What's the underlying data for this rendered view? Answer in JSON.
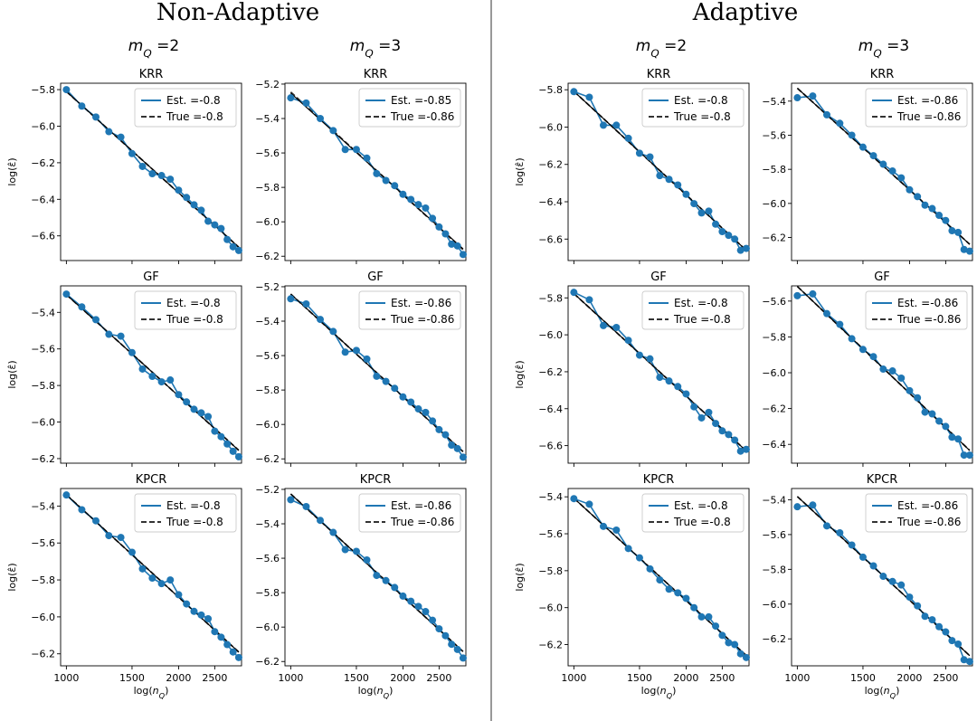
{
  "sections": [
    {
      "title": "Non-Adaptive",
      "columns": [
        "m_Q =2",
        "m_Q =3"
      ]
    },
    {
      "title": "Adaptive",
      "columns": [
        "m_Q =2",
        "m_Q =3"
      ]
    }
  ],
  "x_label": "log(n_Q)",
  "y_label": "log(ε̂)",
  "x_ticks": [
    1000,
    1500,
    2000,
    2500
  ],
  "colors": {
    "series": "#1f77b4",
    "reference": "#333333",
    "divider": "#555555",
    "fit": "#000000"
  },
  "chart_data": [
    {
      "id": "na-m2-krr",
      "type": "line",
      "section": 0,
      "col": 0,
      "row": 0,
      "title": "KRR",
      "xscale": "log",
      "xlim": [
        965,
        2950
      ],
      "ylim": [
        -6.735,
        -5.765
      ],
      "yticks": [
        -5.8,
        -6.0,
        -6.2,
        -6.4,
        -6.6
      ],
      "show_xticks": false,
      "show_ylabel": true,
      "x": [
        1000,
        1100,
        1200,
        1300,
        1400,
        1500,
        1600,
        1700,
        1800,
        1900,
        2000,
        2100,
        2200,
        2300,
        2400,
        2500,
        2600,
        2700,
        2800,
        2900
      ],
      "series": [
        {
          "name": "Est. =-0.8",
          "values": [
            -5.8,
            -5.89,
            -5.95,
            -6.03,
            -6.06,
            -6.15,
            -6.22,
            -6.26,
            -6.27,
            -6.29,
            -6.35,
            -6.39,
            -6.43,
            -6.46,
            -6.52,
            -6.54,
            -6.56,
            -6.62,
            -6.66,
            -6.68
          ],
          "slope": -0.8
        },
        {
          "name": "True =-0.8",
          "slope": -0.8
        }
      ]
    },
    {
      "id": "na-m3-krr",
      "type": "line",
      "section": 0,
      "col": 1,
      "row": 0,
      "title": "KRR",
      "xscale": "log",
      "xlim": [
        965,
        2950
      ],
      "ylim": [
        -6.225,
        -5.195
      ],
      "yticks": [
        -5.2,
        -5.4,
        -5.6,
        -5.8,
        -6.0,
        -6.2
      ],
      "show_xticks": false,
      "show_ylabel": false,
      "x": [
        1000,
        1100,
        1200,
        1300,
        1400,
        1500,
        1600,
        1700,
        1800,
        1900,
        2000,
        2100,
        2200,
        2300,
        2400,
        2500,
        2600,
        2700,
        2800,
        2900
      ],
      "series": [
        {
          "name": "Est. =-0.85",
          "values": [
            -5.28,
            -5.31,
            -5.4,
            -5.47,
            -5.58,
            -5.58,
            -5.63,
            -5.72,
            -5.76,
            -5.79,
            -5.84,
            -5.87,
            -5.9,
            -5.92,
            -5.98,
            -6.03,
            -6.07,
            -6.13,
            -6.14,
            -6.19
          ],
          "slope": -0.85
        },
        {
          "name": "True =-0.86",
          "slope": -0.86
        }
      ]
    },
    {
      "id": "a-m2-krr",
      "type": "line",
      "section": 1,
      "col": 0,
      "row": 0,
      "title": "KRR",
      "xscale": "log",
      "xlim": [
        965,
        2950
      ],
      "ylim": [
        -6.715,
        -5.765
      ],
      "yticks": [
        -5.8,
        -6.0,
        -6.2,
        -6.4,
        -6.6
      ],
      "show_xticks": false,
      "show_ylabel": true,
      "x": [
        1000,
        1100,
        1200,
        1300,
        1400,
        1500,
        1600,
        1700,
        1800,
        1900,
        2000,
        2100,
        2200,
        2300,
        2400,
        2500,
        2600,
        2700,
        2800,
        2900
      ],
      "series": [
        {
          "name": "Est. =-0.8",
          "values": [
            -5.81,
            -5.84,
            -5.99,
            -5.99,
            -6.06,
            -6.14,
            -6.16,
            -6.26,
            -6.28,
            -6.31,
            -6.36,
            -6.41,
            -6.46,
            -6.45,
            -6.52,
            -6.56,
            -6.58,
            -6.6,
            -6.66,
            -6.65
          ],
          "slope": -0.8
        },
        {
          "name": "True =-0.8",
          "slope": -0.8
        }
      ]
    },
    {
      "id": "a-m3-krr",
      "type": "line",
      "section": 1,
      "col": 1,
      "row": 0,
      "title": "KRR",
      "xscale": "log",
      "xlim": [
        965,
        2950
      ],
      "ylim": [
        -6.335,
        -5.295
      ],
      "yticks": [
        -5.4,
        -5.6,
        -5.8,
        -6.0,
        -6.2
      ],
      "show_xticks": false,
      "show_ylabel": false,
      "x": [
        1000,
        1100,
        1200,
        1300,
        1400,
        1500,
        1600,
        1700,
        1800,
        1900,
        2000,
        2100,
        2200,
        2300,
        2400,
        2500,
        2600,
        2700,
        2800,
        2900
      ],
      "series": [
        {
          "name": "Est. =-0.86",
          "values": [
            -5.38,
            -5.37,
            -5.48,
            -5.53,
            -5.6,
            -5.67,
            -5.72,
            -5.77,
            -5.81,
            -5.85,
            -5.92,
            -5.96,
            -6.01,
            -6.03,
            -6.07,
            -6.1,
            -6.16,
            -6.17,
            -6.27,
            -6.28
          ],
          "slope": -0.86
        },
        {
          "name": "True =-0.86",
          "slope": -0.86
        }
      ]
    },
    {
      "id": "na-m2-gf",
      "type": "line",
      "section": 0,
      "col": 0,
      "row": 1,
      "title": "GF",
      "xscale": "log",
      "xlim": [
        965,
        2950
      ],
      "ylim": [
        -6.225,
        -5.255
      ],
      "yticks": [
        -5.4,
        -5.6,
        -5.8,
        -6.0,
        -6.2
      ],
      "show_xticks": false,
      "show_ylabel": true,
      "x": [
        1000,
        1100,
        1200,
        1300,
        1400,
        1500,
        1600,
        1700,
        1800,
        1900,
        2000,
        2100,
        2200,
        2300,
        2400,
        2500,
        2600,
        2700,
        2800,
        2900
      ],
      "series": [
        {
          "name": "Est. =-0.8",
          "values": [
            -5.3,
            -5.37,
            -5.44,
            -5.52,
            -5.53,
            -5.62,
            -5.71,
            -5.75,
            -5.78,
            -5.77,
            -5.85,
            -5.89,
            -5.93,
            -5.95,
            -5.97,
            -6.05,
            -6.08,
            -6.12,
            -6.16,
            -6.19
          ],
          "slope": -0.8
        },
        {
          "name": "True =-0.8",
          "slope": -0.8
        }
      ]
    },
    {
      "id": "na-m3-gf",
      "type": "line",
      "section": 0,
      "col": 1,
      "row": 1,
      "title": "GF",
      "xscale": "log",
      "xlim": [
        965,
        2950
      ],
      "ylim": [
        -6.225,
        -5.195
      ],
      "yticks": [
        -5.2,
        -5.4,
        -5.6,
        -5.8,
        -6.0,
        -6.2
      ],
      "show_xticks": false,
      "show_ylabel": false,
      "x": [
        1000,
        1100,
        1200,
        1300,
        1400,
        1500,
        1600,
        1700,
        1800,
        1900,
        2000,
        2100,
        2200,
        2300,
        2400,
        2500,
        2600,
        2700,
        2800,
        2900
      ],
      "series": [
        {
          "name": "Est. =-0.86",
          "values": [
            -5.27,
            -5.3,
            -5.39,
            -5.46,
            -5.58,
            -5.57,
            -5.62,
            -5.72,
            -5.75,
            -5.79,
            -5.84,
            -5.87,
            -5.91,
            -5.93,
            -5.98,
            -6.03,
            -6.06,
            -6.12,
            -6.14,
            -6.19
          ],
          "slope": -0.86
        },
        {
          "name": "True =-0.86",
          "slope": -0.86
        }
      ]
    },
    {
      "id": "a-m2-gf",
      "type": "line",
      "section": 1,
      "col": 0,
      "row": 1,
      "title": "GF",
      "xscale": "log",
      "xlim": [
        965,
        2950
      ],
      "ylim": [
        -6.695,
        -5.735
      ],
      "yticks": [
        -5.8,
        -6.0,
        -6.2,
        -6.4,
        -6.6
      ],
      "show_xticks": false,
      "show_ylabel": true,
      "x": [
        1000,
        1100,
        1200,
        1300,
        1400,
        1500,
        1600,
        1700,
        1800,
        1900,
        2000,
        2100,
        2200,
        2300,
        2400,
        2500,
        2600,
        2700,
        2800,
        2900
      ],
      "series": [
        {
          "name": "Est. =-0.8",
          "values": [
            -5.77,
            -5.81,
            -5.95,
            -5.96,
            -6.03,
            -6.11,
            -6.13,
            -6.23,
            -6.25,
            -6.28,
            -6.32,
            -6.39,
            -6.45,
            -6.42,
            -6.48,
            -6.52,
            -6.54,
            -6.57,
            -6.63,
            -6.62
          ],
          "slope": -0.8
        },
        {
          "name": "True =-0.8",
          "slope": -0.8
        }
      ]
    },
    {
      "id": "a-m3-gf",
      "type": "line",
      "section": 1,
      "col": 1,
      "row": 1,
      "title": "GF",
      "xscale": "log",
      "xlim": [
        965,
        2950
      ],
      "ylim": [
        -6.505,
        -5.515
      ],
      "yticks": [
        -5.6,
        -5.8,
        -6.0,
        -6.2,
        -6.4
      ],
      "show_xticks": false,
      "show_ylabel": false,
      "x": [
        1000,
        1100,
        1200,
        1300,
        1400,
        1500,
        1600,
        1700,
        1800,
        1900,
        2000,
        2100,
        2200,
        2300,
        2400,
        2500,
        2600,
        2700,
        2800,
        2900
      ],
      "series": [
        {
          "name": "Est. =-0.86",
          "values": [
            -5.57,
            -5.56,
            -5.67,
            -5.73,
            -5.81,
            -5.87,
            -5.91,
            -5.98,
            -5.99,
            -6.03,
            -6.1,
            -6.14,
            -6.22,
            -6.23,
            -6.27,
            -6.3,
            -6.36,
            -6.37,
            -6.46,
            -6.46
          ],
          "slope": -0.86
        },
        {
          "name": "True =-0.86",
          "slope": -0.86
        }
      ]
    },
    {
      "id": "na-m2-kpcr",
      "type": "line",
      "section": 0,
      "col": 0,
      "row": 2,
      "title": "KPCR",
      "xscale": "log",
      "xlim": [
        965,
        2950
      ],
      "ylim": [
        -6.265,
        -5.305
      ],
      "yticks": [
        -5.4,
        -5.6,
        -5.8,
        -6.0,
        -6.2
      ],
      "show_xticks": true,
      "show_ylabel": true,
      "x": [
        1000,
        1100,
        1200,
        1300,
        1400,
        1500,
        1600,
        1700,
        1800,
        1900,
        2000,
        2100,
        2200,
        2300,
        2400,
        2500,
        2600,
        2700,
        2800,
        2900
      ],
      "series": [
        {
          "name": "Est. =-0.8",
          "values": [
            -5.34,
            -5.42,
            -5.48,
            -5.56,
            -5.57,
            -5.65,
            -5.74,
            -5.79,
            -5.82,
            -5.8,
            -5.88,
            -5.93,
            -5.97,
            -5.99,
            -6.01,
            -6.08,
            -6.11,
            -6.15,
            -6.19,
            -6.22
          ],
          "slope": -0.8
        },
        {
          "name": "True =-0.8",
          "slope": -0.8
        }
      ]
    },
    {
      "id": "na-m3-kpcr",
      "type": "line",
      "section": 0,
      "col": 1,
      "row": 2,
      "title": "KPCR",
      "xscale": "log",
      "xlim": [
        965,
        2950
      ],
      "ylim": [
        -6.225,
        -5.195
      ],
      "yticks": [
        -5.2,
        -5.4,
        -5.6,
        -5.8,
        -6.0,
        -6.2
      ],
      "show_xticks": true,
      "show_ylabel": false,
      "x": [
        1000,
        1100,
        1200,
        1300,
        1400,
        1500,
        1600,
        1700,
        1800,
        1900,
        2000,
        2100,
        2200,
        2300,
        2400,
        2500,
        2600,
        2700,
        2800,
        2900
      ],
      "series": [
        {
          "name": "Est. =-0.86",
          "values": [
            -5.26,
            -5.3,
            -5.38,
            -5.45,
            -5.55,
            -5.56,
            -5.61,
            -5.7,
            -5.73,
            -5.77,
            -5.82,
            -5.85,
            -5.88,
            -5.91,
            -5.96,
            -6.01,
            -6.05,
            -6.1,
            -6.13,
            -6.18
          ],
          "slope": -0.86
        },
        {
          "name": "True =-0.86",
          "slope": -0.86
        }
      ]
    },
    {
      "id": "a-m2-kpcr",
      "type": "line",
      "section": 1,
      "col": 0,
      "row": 2,
      "title": "KPCR",
      "xscale": "log",
      "xlim": [
        965,
        2950
      ],
      "ylim": [
        -6.315,
        -5.355
      ],
      "yticks": [
        -5.4,
        -5.6,
        -5.8,
        -6.0,
        -6.2
      ],
      "show_xticks": true,
      "show_ylabel": true,
      "x": [
        1000,
        1100,
        1200,
        1300,
        1400,
        1500,
        1600,
        1700,
        1800,
        1900,
        2000,
        2100,
        2200,
        2300,
        2400,
        2500,
        2600,
        2700,
        2800,
        2900
      ],
      "series": [
        {
          "name": "Est. =-0.8",
          "values": [
            -5.41,
            -5.44,
            -5.56,
            -5.58,
            -5.68,
            -5.73,
            -5.79,
            -5.85,
            -5.9,
            -5.92,
            -5.95,
            -6.0,
            -6.05,
            -6.05,
            -6.1,
            -6.15,
            -6.19,
            -6.2,
            -6.25,
            -6.27
          ],
          "slope": -0.8
        },
        {
          "name": "True =-0.8",
          "slope": -0.8
        }
      ]
    },
    {
      "id": "a-m3-kpcr",
      "type": "line",
      "section": 1,
      "col": 1,
      "row": 2,
      "title": "KPCR",
      "xscale": "log",
      "xlim": [
        965,
        2950
      ],
      "ylim": [
        -6.355,
        -5.335
      ],
      "yticks": [
        -5.4,
        -5.6,
        -5.8,
        -6.0,
        -6.2
      ],
      "show_xticks": true,
      "show_ylabel": false,
      "x": [
        1000,
        1100,
        1200,
        1300,
        1400,
        1500,
        1600,
        1700,
        1800,
        1900,
        2000,
        2100,
        2200,
        2300,
        2400,
        2500,
        2600,
        2700,
        2800,
        2900
      ],
      "series": [
        {
          "name": "Est. =-0.86",
          "values": [
            -5.44,
            -5.43,
            -5.55,
            -5.59,
            -5.66,
            -5.73,
            -5.78,
            -5.84,
            -5.87,
            -5.89,
            -5.96,
            -6.01,
            -6.07,
            -6.09,
            -6.13,
            -6.16,
            -6.21,
            -6.23,
            -6.32,
            -6.33
          ],
          "slope": -0.86
        },
        {
          "name": "True =-0.86",
          "slope": -0.86
        }
      ]
    }
  ]
}
